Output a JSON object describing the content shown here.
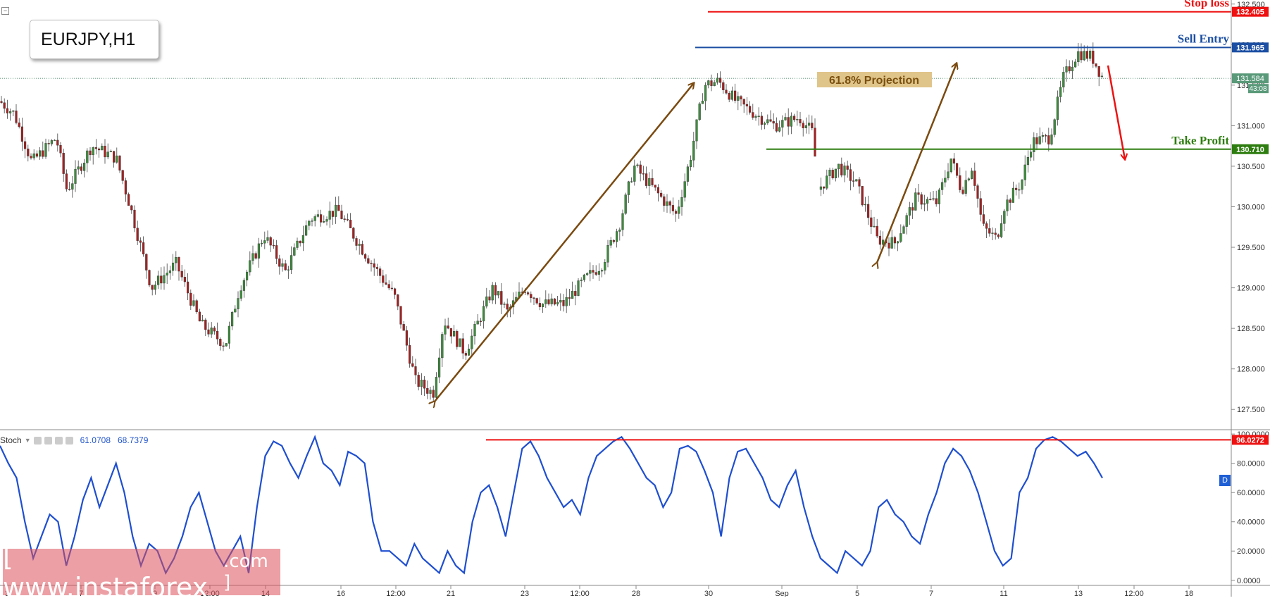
{
  "symbol": "EURJPY,H1",
  "stoch": {
    "label": "Stoch",
    "value1": "61.0708",
    "value2": "68.7379"
  },
  "watermark": {
    "text": "[  www.instaforex",
    "suffix": ".com ]"
  },
  "d_badge": "D",
  "colors": {
    "red": "#ee1111",
    "blue": "#1c4fa3",
    "green": "#2e7d10",
    "brown": "#7a4a10",
    "stoch_line": "#1f4fd0",
    "candle_up": "#3c8c3c",
    "candle_down": "#a52020"
  },
  "chart_data": [
    {
      "type": "line",
      "title": "EURJPY,H1",
      "description_visible": "candlestick price",
      "ylim": [
        127.25,
        132.55
      ],
      "y_ticks": [
        "132.500",
        "132.000",
        "131.500",
        "131.000",
        "130.500",
        "130.000",
        "129.500",
        "129.000",
        "128.500",
        "128.000",
        "127.500"
      ],
      "x_ticks": [
        "3",
        "7",
        "9",
        "12:00",
        "14",
        "16",
        "12:00",
        "21",
        "23",
        "12:00",
        "28",
        "30",
        "Sep",
        "5",
        "7",
        "11",
        "13",
        "12:00",
        "18"
      ],
      "price_path": [
        [
          0,
          131.3
        ],
        [
          20,
          131.15
        ],
        [
          45,
          130.55
        ],
        [
          80,
          130.85
        ],
        [
          95,
          130.2
        ],
        [
          130,
          130.75
        ],
        [
          165,
          130.6
        ],
        [
          185,
          130.0
        ],
        [
          215,
          129.0
        ],
        [
          250,
          129.3
        ],
        [
          285,
          128.55
        ],
        [
          320,
          128.3
        ],
        [
          340,
          129.0
        ],
        [
          375,
          129.65
        ],
        [
          405,
          129.2
        ],
        [
          440,
          129.85
        ],
        [
          480,
          129.95
        ],
        [
          520,
          129.4
        ],
        [
          560,
          128.9
        ],
        [
          590,
          127.85
        ],
        [
          615,
          127.7
        ],
        [
          630,
          128.6
        ],
        [
          660,
          128.2
        ],
        [
          700,
          129.0
        ],
        [
          720,
          128.7
        ],
        [
          745,
          129.0
        ],
        [
          770,
          128.8
        ],
        [
          800,
          128.8
        ],
        [
          830,
          129.1
        ],
        [
          855,
          129.3
        ],
        [
          880,
          129.8
        ],
        [
          900,
          130.5
        ],
        [
          930,
          130.2
        ],
        [
          960,
          129.9
        ],
        [
          980,
          130.6
        ],
        [
          1000,
          131.5
        ],
        [
          1020,
          131.55
        ],
        [
          1045,
          131.3
        ],
        [
          1080,
          131.1
        ],
        [
          1100,
          131.0
        ],
        [
          1135,
          131.1
        ],
        [
          1155,
          130.9
        ],
        [
          1160,
          130.2
        ],
        [
          1190,
          130.5
        ],
        [
          1215,
          130.3
        ],
        [
          1245,
          129.6
        ],
        [
          1270,
          129.55
        ],
        [
          1300,
          130.1
        ],
        [
          1330,
          130.05
        ],
        [
          1350,
          130.6
        ],
        [
          1365,
          130.2
        ],
        [
          1380,
          130.5
        ],
        [
          1395,
          129.75
        ],
        [
          1415,
          129.6
        ],
        [
          1425,
          130.0
        ],
        [
          1450,
          130.3
        ],
        [
          1465,
          130.8
        ],
        [
          1490,
          130.85
        ],
        [
          1510,
          131.6
        ],
        [
          1530,
          131.9
        ],
        [
          1550,
          131.85
        ],
        [
          1565,
          131.6
        ]
      ],
      "levels": [
        {
          "name": "Stop loss",
          "value": 132.405,
          "label": "132.405",
          "color": "#ee1111"
        },
        {
          "name": "Sell Entry",
          "value": 131.965,
          "label": "131.965",
          "color": "#1c4fa3"
        },
        {
          "name": "Take Profit",
          "value": 130.71,
          "label": "130.710",
          "color": "#2e7d10"
        }
      ],
      "current_price": {
        "label": "131.584",
        "timer": "43:08",
        "value": 131.584
      },
      "annotation": "61.8% Projection",
      "legend": "none"
    },
    {
      "type": "line",
      "title": "Stoch",
      "ylim": [
        -3,
        102
      ],
      "y_ticks": [
        "100.0000",
        "80.0000",
        "60.0000",
        "40.0000",
        "20.0000",
        "0.0000"
      ],
      "level": {
        "value": 96.0272,
        "label": "96.0272"
      },
      "values": [
        92,
        80,
        70,
        40,
        15,
        30,
        45,
        40,
        10,
        30,
        55,
        70,
        50,
        65,
        80,
        60,
        30,
        10,
        25,
        20,
        5,
        15,
        30,
        50,
        60,
        40,
        20,
        10,
        20,
        30,
        5,
        50,
        85,
        95,
        92,
        80,
        70,
        85,
        98,
        80,
        75,
        65,
        88,
        85,
        80,
        40,
        20,
        20,
        15,
        10,
        25,
        15,
        10,
        5,
        20,
        10,
        5,
        40,
        60,
        65,
        50,
        30,
        60,
        90,
        95,
        85,
        70,
        60,
        50,
        55,
        45,
        70,
        85,
        90,
        95,
        98,
        90,
        80,
        70,
        65,
        50,
        60,
        90,
        92,
        88,
        75,
        60,
        30,
        70,
        88,
        90,
        80,
        70,
        55,
        50,
        65,
        75,
        50,
        30,
        15,
        10,
        5,
        20,
        15,
        10,
        20,
        50,
        55,
        45,
        40,
        30,
        25,
        45,
        60,
        80,
        90,
        85,
        75,
        60,
        40,
        20,
        10,
        15,
        60,
        70,
        90,
        96,
        98,
        95,
        90,
        85,
        88,
        80,
        70
      ]
    }
  ]
}
